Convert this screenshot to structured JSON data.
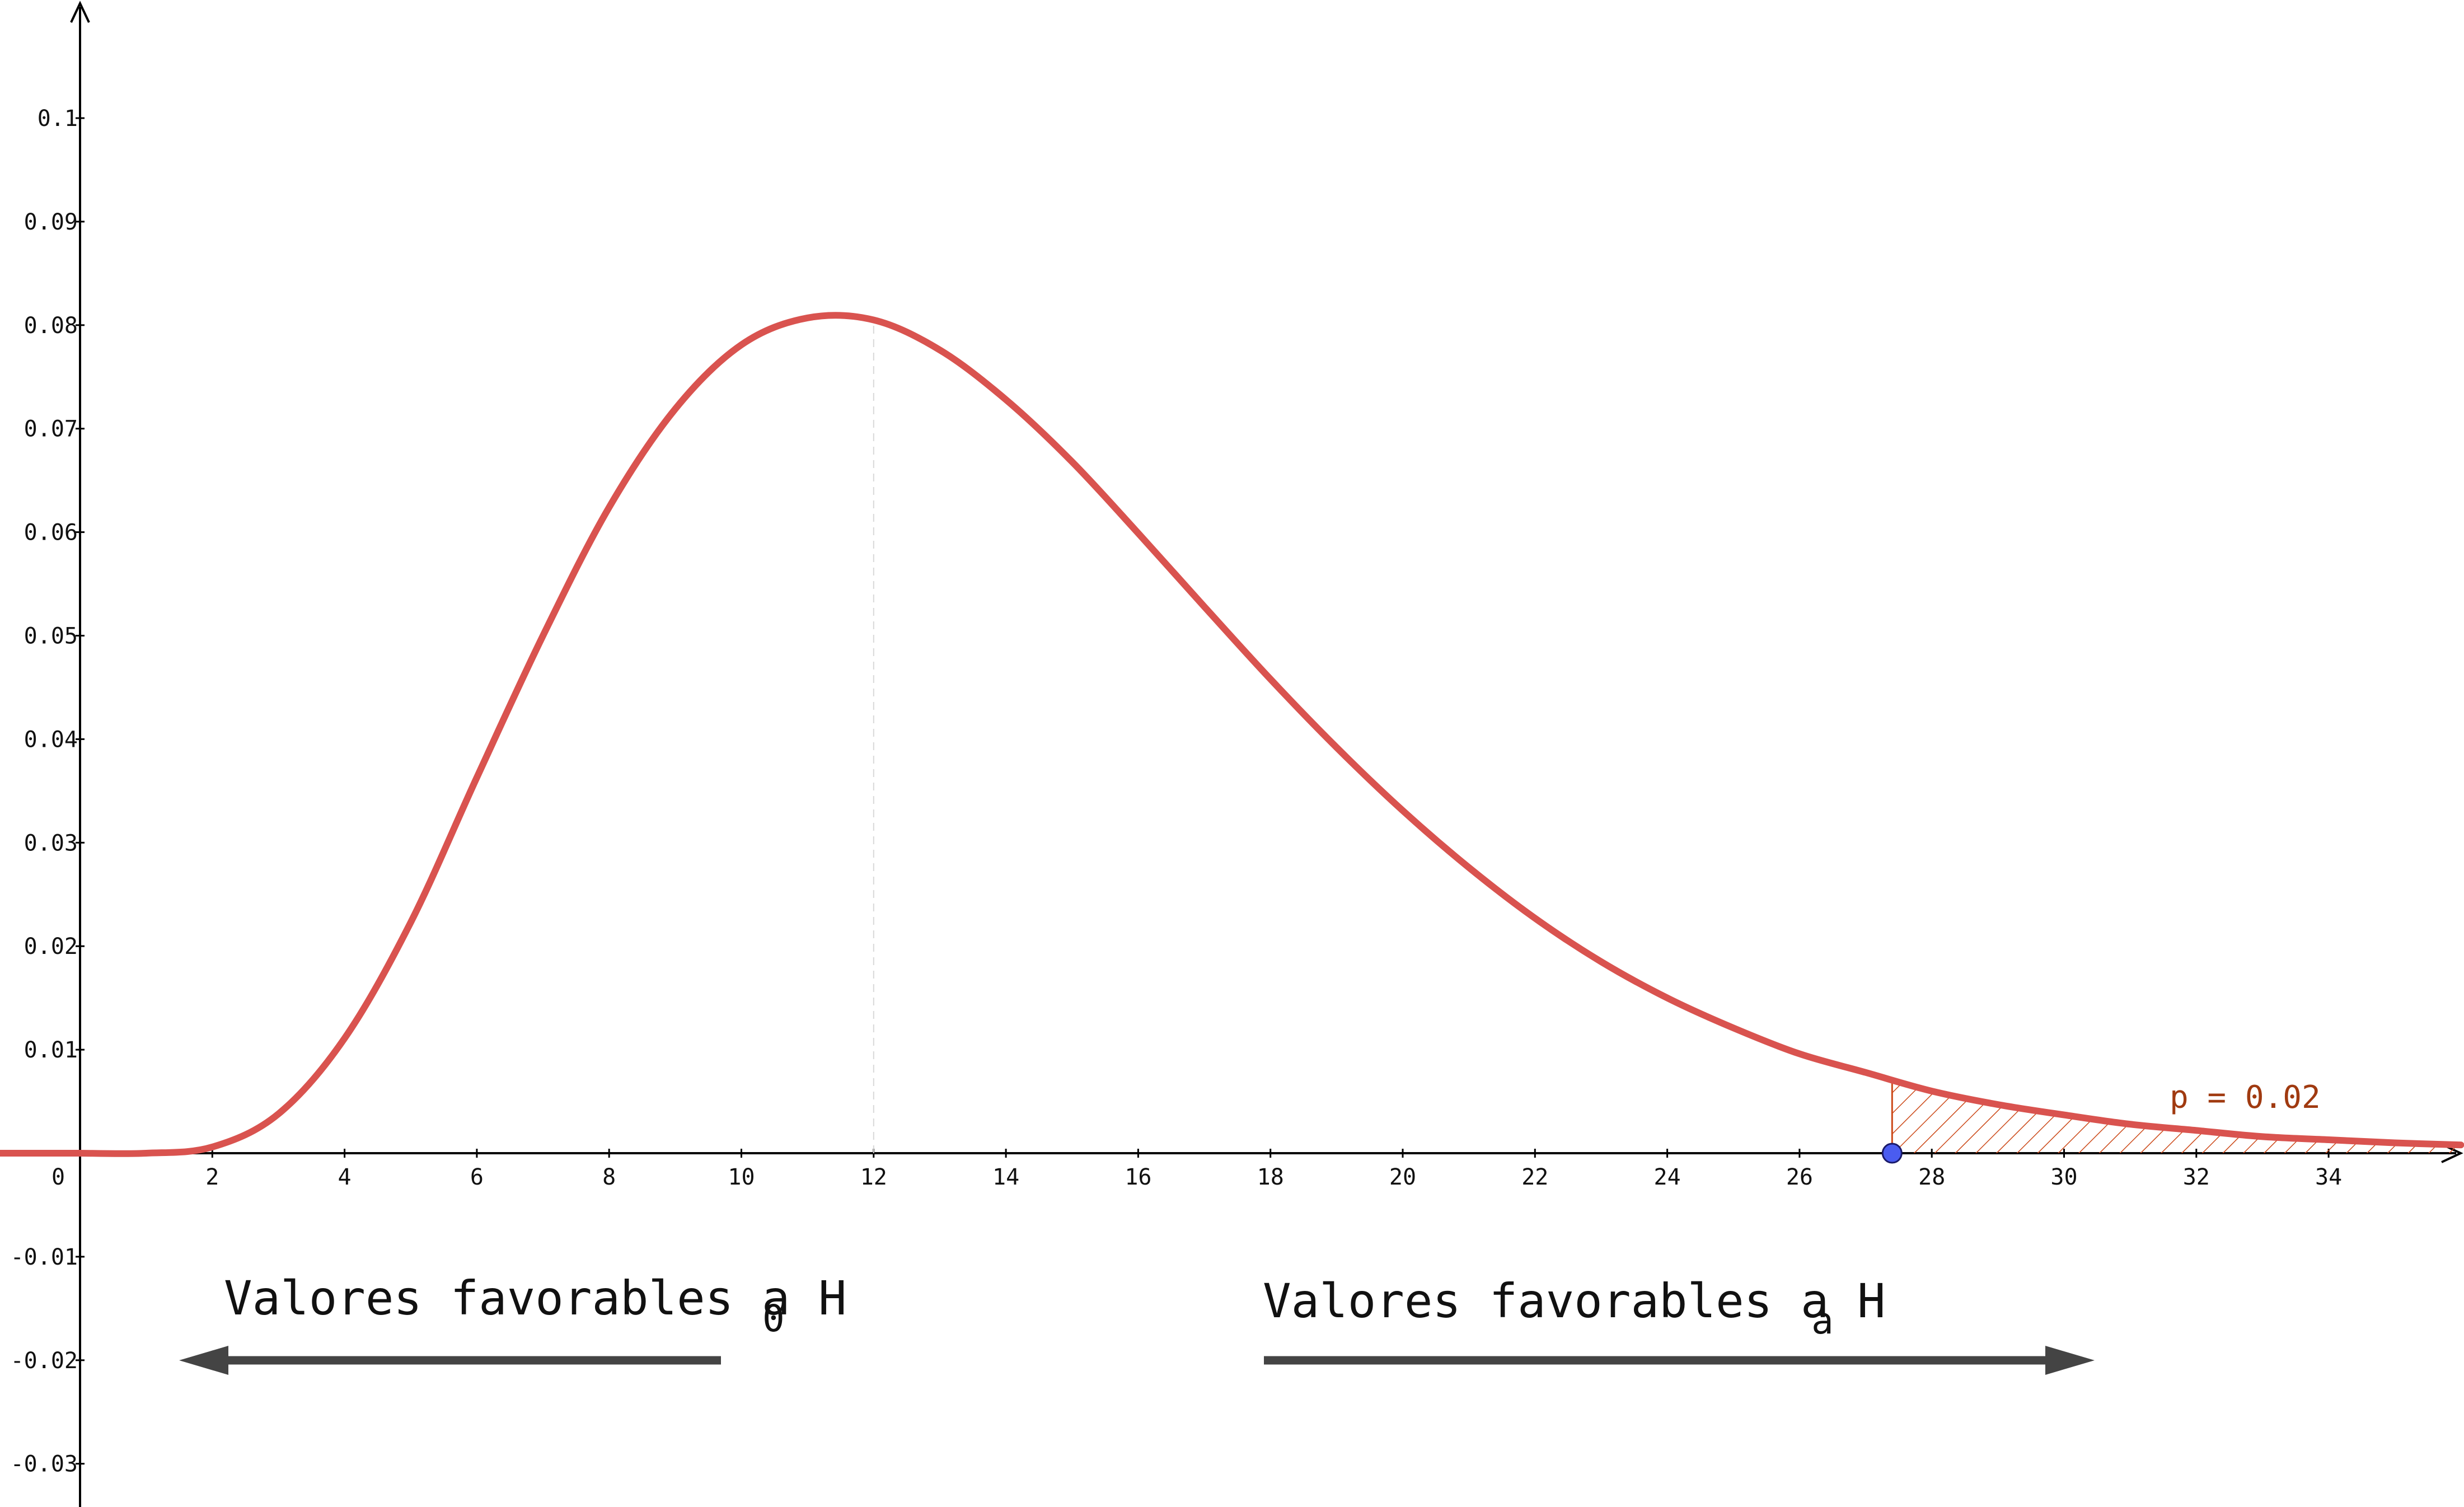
{
  "chart_data": {
    "type": "line",
    "title": "",
    "xlabel": "",
    "ylabel": "",
    "xlim": [
      -14.5,
      36.0
    ],
    "ylim": [
      -0.035,
      0.11
    ],
    "x_ticks": [
      2,
      4,
      6,
      8,
      10,
      12,
      14,
      16,
      18,
      20,
      22,
      24,
      26,
      28,
      30,
      32,
      34
    ],
    "y_ticks": [
      0.1,
      0.09,
      0.08,
      0.07,
      0.06,
      0.05,
      0.04,
      0.03,
      0.02,
      0.01,
      -0.01,
      -0.02,
      -0.03
    ],
    "origin_label": "0",
    "grid": false,
    "curve": {
      "distribution": "chi-squared",
      "df": 14,
      "color": "#d9534f",
      "points": [
        [
          0,
          0
        ],
        [
          1,
          0.0
        ],
        [
          2,
          0.0006
        ],
        [
          3,
          0.0038
        ],
        [
          4,
          0.0111
        ],
        [
          5,
          0.0223
        ],
        [
          6,
          0.0363
        ],
        [
          7,
          0.05
        ],
        [
          8,
          0.0624
        ],
        [
          9,
          0.0719
        ],
        [
          10,
          0.0781
        ],
        [
          11,
          0.0807
        ],
        [
          12,
          0.0805
        ],
        [
          13,
          0.0776
        ],
        [
          14,
          0.0728
        ],
        [
          15,
          0.0668
        ],
        [
          16,
          0.0599
        ],
        [
          17,
          0.0528
        ],
        [
          18,
          0.0458
        ],
        [
          19,
          0.0392
        ],
        [
          20,
          0.0331
        ],
        [
          21,
          0.0276
        ],
        [
          22,
          0.0227
        ],
        [
          23,
          0.0185
        ],
        [
          24,
          0.015
        ],
        [
          25,
          0.0121
        ],
        [
          26,
          0.0096
        ],
        [
          27,
          0.0078
        ],
        [
          28,
          0.006
        ],
        [
          29,
          0.0047
        ],
        [
          30,
          0.0037
        ],
        [
          31,
          0.0028
        ],
        [
          32,
          0.0022
        ],
        [
          33,
          0.0016
        ],
        [
          34,
          0.0013
        ],
        [
          35,
          0.001
        ],
        [
          36,
          0.0008
        ]
      ]
    },
    "mode_line_x": 12,
    "critical_point": {
      "x": 27.4,
      "color": "#4a5cf0"
    },
    "shaded_region": {
      "x_from": 27.4,
      "x_to": 36.0,
      "color": "#cc4a1a",
      "label": "p = 0.02"
    },
    "annotations": [
      {
        "text": "Valores favorables a H",
        "subscript": "0",
        "direction": "left"
      },
      {
        "text": "Valores favorables a H",
        "subscript": "a",
        "direction": "right"
      }
    ],
    "colors": {
      "axis": "#000000",
      "arrow": "#444444",
      "pvalue_text": "#a03a10"
    }
  }
}
